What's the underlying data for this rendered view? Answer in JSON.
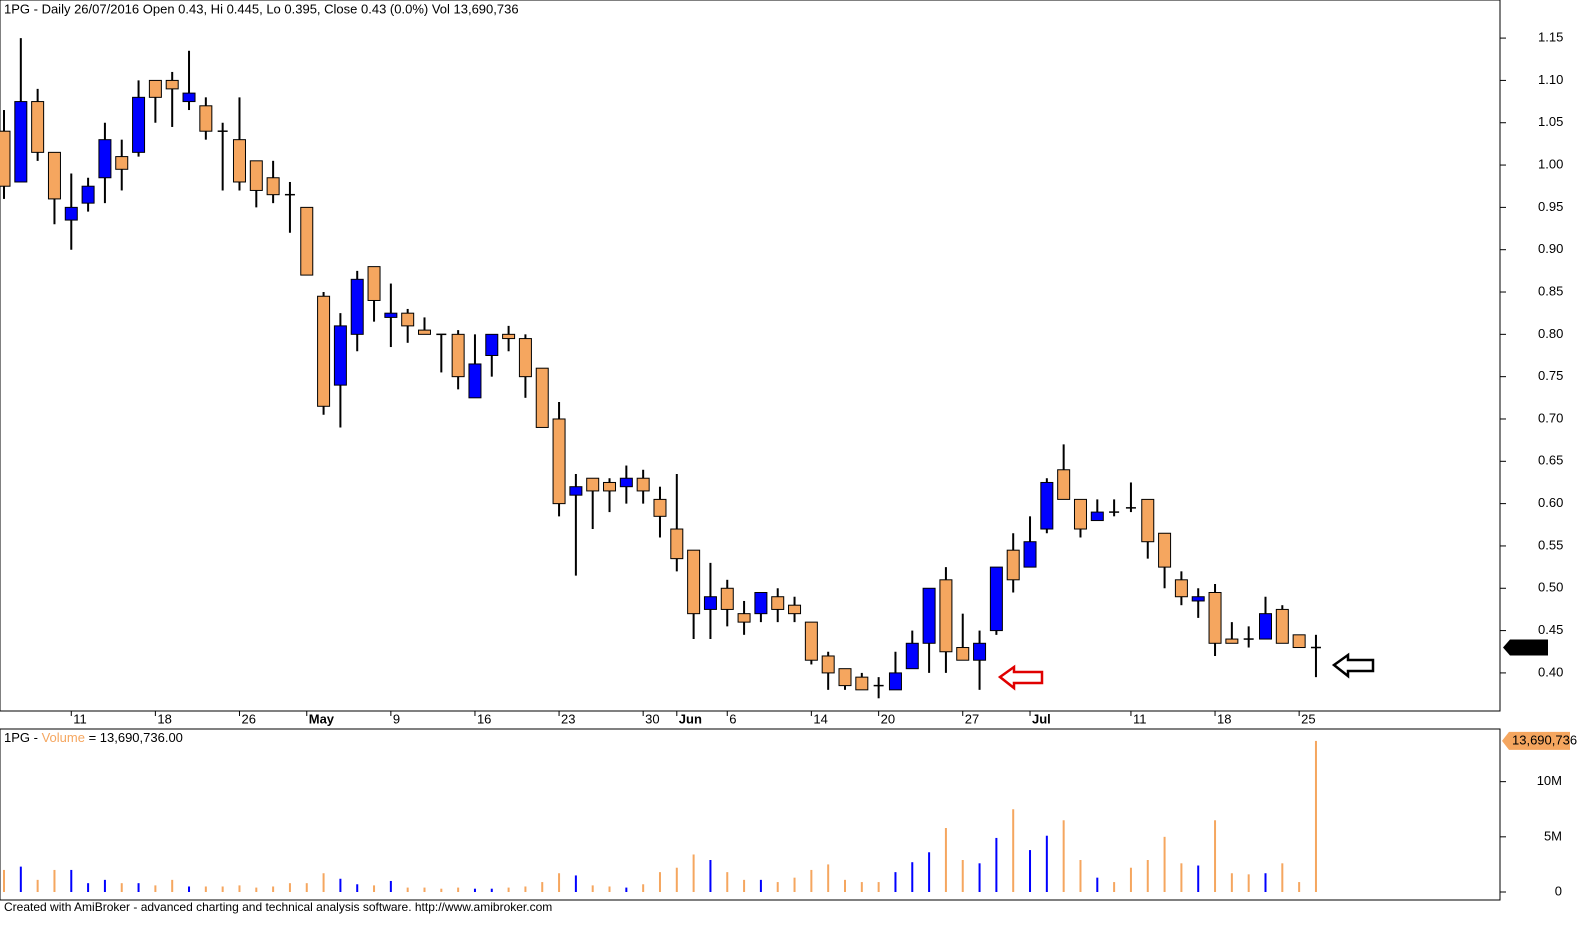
{
  "chart_data": [
    {
      "type": "candlestick",
      "title": "1PG - Daily 26/07/2016 Open 0.43, Hi 0.445, Lo 0.395, Close 0.43 (0.0%) Vol 13,690,736",
      "categories": [
        null,
        null,
        null,
        null,
        "11",
        null,
        null,
        null,
        null,
        "18",
        null,
        null,
        null,
        null,
        "26",
        null,
        null,
        null,
        "May",
        null,
        null,
        null,
        null,
        "9",
        null,
        null,
        null,
        null,
        "16",
        null,
        null,
        null,
        null,
        "23",
        null,
        null,
        null,
        null,
        "30",
        null,
        "Jun",
        null,
        null,
        "6",
        null,
        null,
        null,
        null,
        "14",
        null,
        null,
        null,
        "20",
        null,
        null,
        null,
        null,
        "27",
        null,
        null,
        null,
        "Jul",
        null,
        null,
        null,
        null,
        null,
        "11",
        null,
        null,
        null,
        null,
        "18",
        null,
        null,
        null,
        null,
        "25",
        null
      ],
      "open": [
        1.04,
        0.98,
        1.075,
        1.015,
        0.935,
        0.955,
        0.985,
        1.01,
        1.015,
        1.1,
        1.1,
        1.075,
        1.07,
        1.04,
        1.03,
        1.005,
        0.985,
        0.965,
        0.95,
        0.845,
        0.74,
        0.8,
        0.88,
        0.82,
        0.825,
        0.805,
        0.8,
        0.8,
        0.725,
        0.775,
        0.8,
        0.795,
        0.76,
        0.7,
        0.61,
        0.63,
        0.625,
        0.62,
        0.63,
        0.605,
        0.57,
        0.545,
        0.475,
        0.5,
        0.47,
        0.47,
        0.49,
        0.48,
        0.46,
        0.42,
        0.405,
        0.395,
        0.385,
        0.38,
        0.405,
        0.435,
        0.51,
        0.43,
        0.415,
        0.45,
        0.545,
        0.525,
        0.57,
        0.64,
        0.605,
        0.58,
        0.59,
        0.595,
        0.605,
        0.565,
        0.51,
        0.485,
        0.495,
        0.44,
        0.44,
        0.44,
        0.475,
        0.445,
        0.43
      ],
      "high": [
        1.065,
        1.15,
        1.09,
        1.015,
        0.99,
        0.985,
        1.05,
        1.03,
        1.1,
        1.1,
        1.11,
        1.135,
        1.08,
        1.05,
        1.08,
        1.005,
        1.005,
        0.98,
        0.95,
        0.85,
        0.825,
        0.875,
        0.88,
        0.86,
        0.83,
        0.82,
        0.8,
        0.805,
        0.8,
        0.8,
        0.81,
        0.8,
        0.76,
        0.72,
        0.635,
        0.63,
        0.63,
        0.645,
        0.64,
        0.62,
        0.635,
        0.545,
        0.53,
        0.51,
        0.485,
        0.495,
        0.5,
        0.49,
        0.46,
        0.425,
        0.405,
        0.4,
        0.395,
        0.425,
        0.45,
        0.5,
        0.525,
        0.47,
        0.45,
        0.525,
        0.565,
        0.585,
        0.63,
        0.67,
        0.605,
        0.605,
        0.605,
        0.625,
        0.605,
        0.565,
        0.52,
        0.5,
        0.505,
        0.46,
        0.455,
        0.49,
        0.48,
        0.445,
        0.445
      ],
      "low": [
        0.96,
        0.98,
        1.005,
        0.93,
        0.9,
        0.945,
        0.955,
        0.97,
        1.01,
        1.05,
        1.045,
        1.065,
        1.03,
        0.97,
        0.97,
        0.95,
        0.955,
        0.92,
        0.87,
        0.705,
        0.69,
        0.78,
        0.815,
        0.785,
        0.79,
        0.8,
        0.755,
        0.735,
        0.725,
        0.75,
        0.78,
        0.725,
        0.69,
        0.585,
        0.515,
        0.57,
        0.59,
        0.6,
        0.6,
        0.56,
        0.52,
        0.44,
        0.44,
        0.455,
        0.445,
        0.46,
        0.46,
        0.46,
        0.41,
        0.38,
        0.38,
        0.38,
        0.37,
        0.38,
        0.405,
        0.4,
        0.4,
        0.415,
        0.38,
        0.445,
        0.495,
        0.525,
        0.565,
        0.605,
        0.56,
        0.58,
        0.585,
        0.59,
        0.535,
        0.5,
        0.48,
        0.465,
        0.42,
        0.435,
        0.43,
        0.44,
        0.435,
        0.43,
        0.395
      ],
      "close": [
        0.975,
        1.075,
        1.015,
        0.96,
        0.95,
        0.975,
        1.03,
        0.995,
        1.08,
        1.08,
        1.09,
        1.085,
        1.04,
        1.04,
        0.98,
        0.97,
        0.965,
        0.965,
        0.87,
        0.715,
        0.81,
        0.865,
        0.84,
        0.825,
        0.81,
        0.8,
        0.8,
        0.75,
        0.765,
        0.8,
        0.795,
        0.75,
        0.69,
        0.6,
        0.62,
        0.615,
        0.615,
        0.63,
        0.615,
        0.585,
        0.535,
        0.47,
        0.49,
        0.475,
        0.46,
        0.495,
        0.475,
        0.47,
        0.415,
        0.4,
        0.385,
        0.38,
        0.385,
        0.4,
        0.435,
        0.5,
        0.425,
        0.415,
        0.435,
        0.525,
        0.51,
        0.555,
        0.625,
        0.605,
        0.57,
        0.59,
        0.59,
        0.595,
        0.555,
        0.525,
        0.49,
        0.49,
        0.435,
        0.435,
        0.44,
        0.47,
        0.435,
        0.43,
        0.43
      ],
      "up_color": "#0000ff",
      "down_color": "#f5a65f",
      "ylim": [
        0.355,
        1.195
      ],
      "yticks": [
        {
          "value": 0.4,
          "label": "0.40"
        },
        0.45,
        {
          "value": 0.5,
          "label": "0.50"
        },
        0.55,
        {
          "value": 0.6,
          "label": "0.60"
        },
        0.65,
        {
          "value": 0.7,
          "label": "0.70"
        },
        0.75,
        {
          "value": 0.8,
          "label": "0.80"
        },
        0.85,
        {
          "value": 0.9,
          "label": "0.90"
        },
        0.95,
        {
          "value": 1.0,
          "label": "1.00"
        },
        1.05,
        {
          "value": 1.1,
          "label": "1.10"
        },
        1.15
      ],
      "last_label": "0.43"
    },
    {
      "type": "bar",
      "title": [
        "1PG - ",
        "Volume",
        " = 13,690,736.00"
      ],
      "title_color": "#f5a65f",
      "values": [
        2000000,
        2300000,
        1100000,
        2000000,
        2000000,
        800000,
        1100000,
        800000,
        800000,
        600000,
        1100000,
        500000,
        500000,
        500000,
        600000,
        400000,
        500000,
        800000,
        800000,
        1700000,
        1200000,
        700000,
        600000,
        1000000,
        400000,
        400000,
        300000,
        400000,
        300000,
        300000,
        400000,
        500000,
        900000,
        1700000,
        1500000,
        600000,
        500000,
        400000,
        700000,
        1800000,
        2200000,
        3400000,
        2900000,
        1800000,
        1100000,
        1100000,
        900000,
        1300000,
        2000000,
        2500000,
        1100000,
        900000,
        900000,
        1800000,
        2700000,
        3600000,
        5800000,
        2900000,
        2600000,
        4900000,
        7500000,
        3800000,
        5100000,
        6500000,
        2900000,
        1300000,
        900000,
        2200000,
        2900000,
        5000000,
        2600000,
        2400000,
        6500000,
        1700000,
        1600000,
        1700000,
        2600000,
        900000,
        13690736
      ],
      "ylim": [
        0,
        14500000
      ],
      "yticks": [
        0,
        {
          "value": 5000000,
          "label": "5M"
        },
        {
          "value": 10000000,
          "label": "10M"
        }
      ],
      "last_label": "13,690,736"
    }
  ],
  "footer": "Created with AmiBroker - advanced charting and technical analysis software. http://www.amibroker.com"
}
